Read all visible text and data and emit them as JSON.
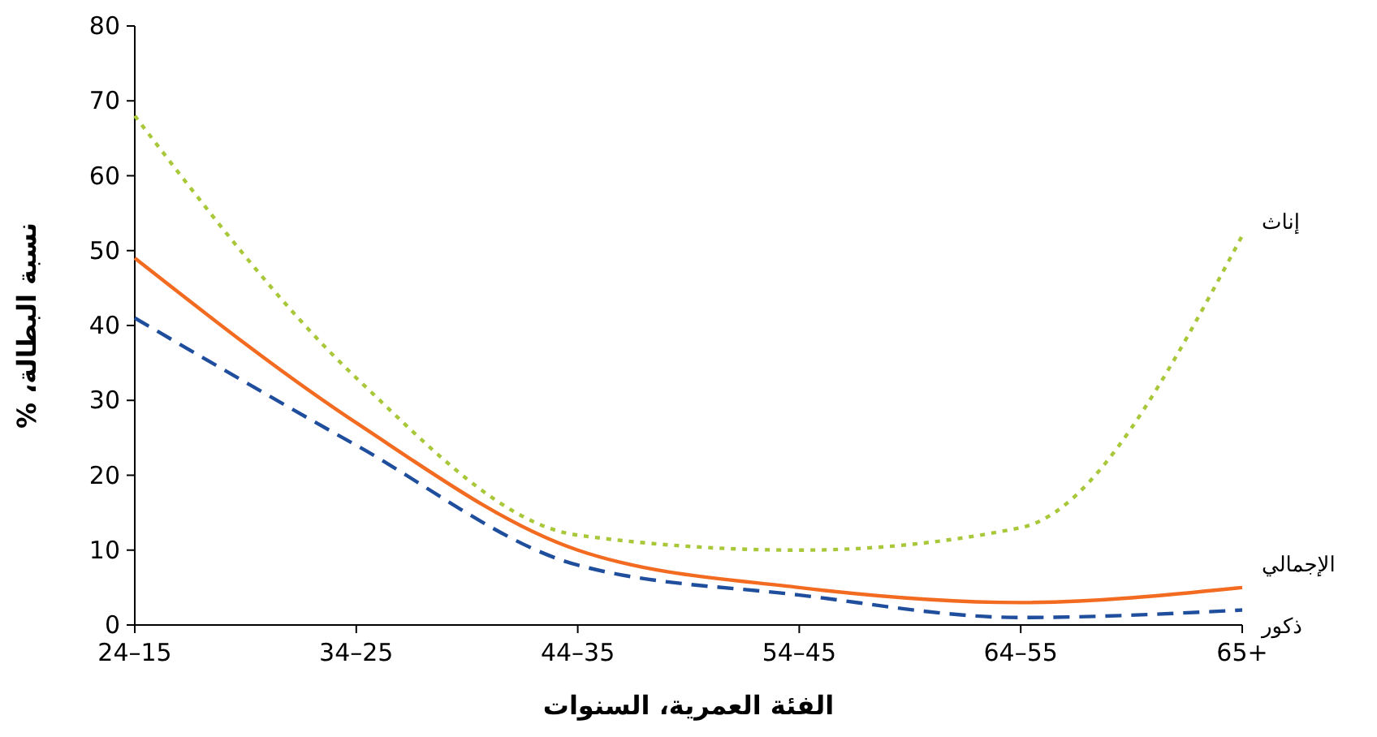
{
  "chart_data": {
    "type": "line",
    "xlabel": "الفئة العمرية، السنوات",
    "ylabel": "نسبة البطالة، %",
    "categories": [
      "24–15",
      "34–25",
      "44–35",
      "54–45",
      "64–55",
      "65+"
    ],
    "ylim": [
      0,
      80
    ],
    "yticks": [
      0,
      10,
      20,
      30,
      40,
      50,
      60,
      70,
      80
    ],
    "grid": false,
    "series": [
      {
        "name": "إناث",
        "color": "#a8c83a",
        "line_style": "dotted",
        "values": [
          68,
          33,
          12,
          10,
          13,
          52
        ]
      },
      {
        "name": "الإجمالي",
        "color": "#f26b21",
        "line_style": "solid",
        "values": [
          49,
          27,
          10,
          5,
          3,
          5
        ]
      },
      {
        "name": "ذكور",
        "color": "#1f4e9c",
        "line_style": "dashed",
        "values": [
          41,
          24,
          8,
          4,
          1,
          2
        ]
      }
    ]
  }
}
